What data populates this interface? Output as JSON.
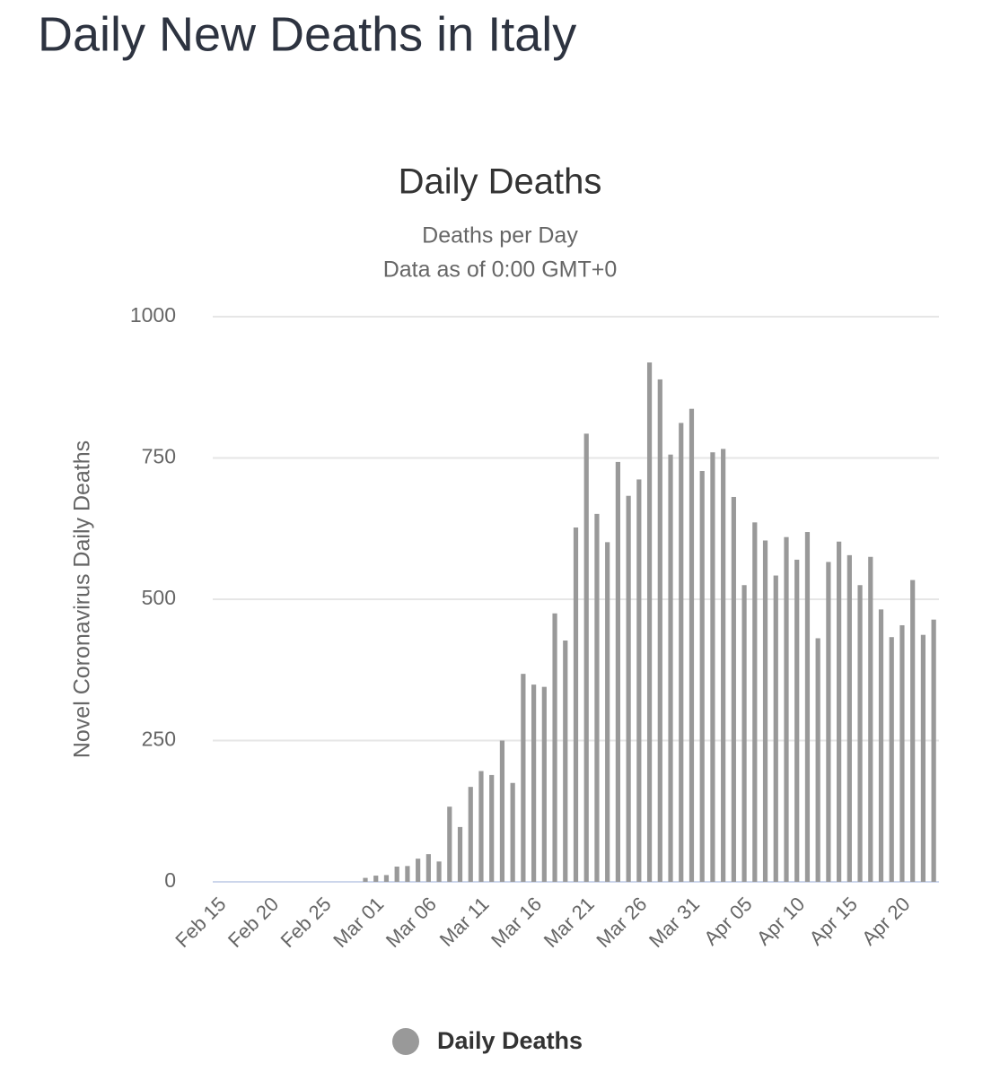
{
  "header": {
    "title": "Daily New Deaths in Italy"
  },
  "chart_data": {
    "type": "bar",
    "title": "Daily Deaths",
    "subtitle": [
      "Deaths per Day",
      "Data as of 0:00 GMT+0"
    ],
    "y_label": "Novel Coronavirus Daily Deaths",
    "categories": [
      "Feb 15",
      null,
      null,
      null,
      null,
      "Feb 20",
      null,
      null,
      null,
      null,
      "Feb 25",
      null,
      null,
      null,
      null,
      "Mar 01",
      null,
      null,
      null,
      null,
      "Mar 06",
      null,
      null,
      null,
      null,
      "Mar 11",
      null,
      null,
      null,
      null,
      "Mar 16",
      null,
      null,
      null,
      null,
      "Mar 21",
      null,
      null,
      null,
      null,
      "Mar 26",
      null,
      null,
      null,
      null,
      "Mar 31",
      null,
      null,
      null,
      null,
      "Apr 05",
      null,
      null,
      null,
      null,
      "Apr 10",
      null,
      null,
      null,
      null,
      "Apr 15",
      null,
      null,
      null,
      null,
      "Apr 20",
      null,
      null,
      null
    ],
    "series": [
      {
        "name": "Daily Deaths",
        "color": "#999999",
        "values": [
          0,
          0,
          0,
          0,
          0,
          0,
          0,
          0,
          0,
          0,
          0,
          0,
          0,
          0,
          7,
          11,
          12,
          27,
          28,
          41,
          49,
          36,
          133,
          97,
          168,
          196,
          189,
          250,
          175,
          368,
          349,
          345,
          475,
          427,
          627,
          793,
          651,
          601,
          743,
          683,
          712,
          919,
          889,
          756,
          812,
          837,
          727,
          760,
          766,
          681,
          525,
          636,
          604,
          542,
          610,
          570,
          619,
          431,
          566,
          602,
          578,
          525,
          575,
          482,
          433,
          454,
          534,
          437,
          464
        ]
      }
    ],
    "ylim": [
      0,
      1000
    ],
    "yticks": [
      0,
      250,
      500,
      750,
      1000
    ],
    "grid": true
  }
}
